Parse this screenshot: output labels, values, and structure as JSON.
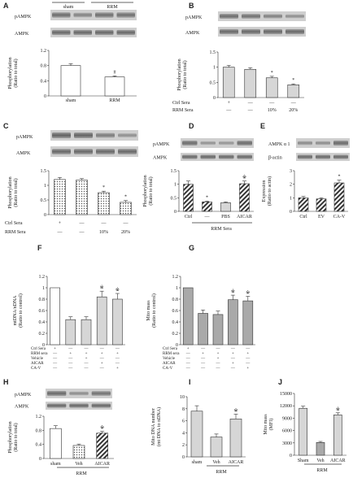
{
  "colors": {
    "bar_white": "#ffffff",
    "bar_light": "#d6d6d6",
    "bar_dark": "#a9a9a9",
    "stroke": "#333333",
    "blot": "#4a4a4a"
  },
  "panels": [
    {
      "id": "A",
      "letter": "A",
      "blot_labels": [
        "pAMPK",
        "AMPK"
      ],
      "group_labels": [
        "sham",
        "RRM"
      ],
      "chart_data": {
        "type": "bar",
        "categories": [
          "sham",
          "RRM"
        ],
        "values": [
          0.8,
          0.5
        ],
        "errors": [
          0.05,
          0.03
        ],
        "fills": [
          "white",
          "white"
        ],
        "ylabel": "Phosphorylation (Ratio to total)",
        "ylim": [
          0,
          1.2
        ],
        "yticks": [
          "0",
          "0.4",
          "0.8",
          "1.2"
        ],
        "yticks_v": [
          0,
          0.4,
          0.8,
          1.2
        ],
        "annotations": [
          {
            "index": 1,
            "text": "#"
          }
        ]
      }
    },
    {
      "id": "B",
      "letter": "B",
      "blot_labels": [
        "pAMPK",
        "AMPK"
      ],
      "chart_data": {
        "type": "bar",
        "categories": [
          "",
          "",
          "",
          ""
        ],
        "values": [
          1.0,
          0.93,
          0.65,
          0.42
        ],
        "errors": [
          0.06,
          0.05,
          0.05,
          0.03
        ],
        "fills": [
          "light",
          "light",
          "light",
          "light"
        ],
        "ylabel": "Phosphorylation (Ratio to total)",
        "ylim": [
          0,
          1.5
        ],
        "yticks": [
          "0",
          "0.5",
          "1",
          "1.5"
        ],
        "yticks_v": [
          0,
          0.5,
          1,
          1.5
        ],
        "annotations": [
          {
            "index": 2,
            "text": "*"
          },
          {
            "index": 3,
            "text": "*"
          }
        ]
      },
      "rows": [
        {
          "label": "Ctrl Sera",
          "cells": [
            "+",
            "—",
            "—",
            "—"
          ]
        },
        {
          "label": "RRM Sera",
          "cells": [
            "—",
            "—",
            "10%",
            "20%"
          ]
        }
      ]
    },
    {
      "id": "C",
      "letter": "C",
      "blot_labels": [
        "pAMPK",
        "AMPK"
      ],
      "chart_data": {
        "type": "bar",
        "categories": [
          "",
          "",
          "",
          ""
        ],
        "values": [
          1.2,
          1.18,
          0.75,
          0.42
        ],
        "errors": [
          0.07,
          0.05,
          0.05,
          0.06
        ],
        "fills": [
          "dots",
          "dots",
          "dots",
          "dots"
        ],
        "ylabel": "Phosphorylation (Ratio to total)",
        "ylim": [
          0,
          1.5
        ],
        "yticks": [
          "0",
          "0.5",
          "1",
          "1.5"
        ],
        "yticks_v": [
          0,
          0.5,
          1,
          1.5
        ],
        "annotations": [
          {
            "index": 2,
            "text": "*"
          },
          {
            "index": 3,
            "text": "*"
          }
        ]
      },
      "rows": [
        {
          "label": "Ctrl  Sera",
          "cells": [
            "+",
            "—",
            "—",
            "—"
          ]
        },
        {
          "label": "RRM Sera",
          "cells": [
            "—",
            "—",
            "10%",
            "20%"
          ]
        }
      ]
    },
    {
      "id": "D",
      "letter": "D",
      "blot_labels": [
        "pAMPK",
        "AMPK"
      ],
      "chart_data": {
        "type": "bar",
        "categories": [
          "Ctrl",
          "—",
          "PBS",
          "AICAR"
        ],
        "values": [
          1.0,
          0.35,
          0.32,
          1.02
        ],
        "errors": [
          0.12,
          0.03,
          0.03,
          0.1
        ],
        "fills": [
          "hatch",
          "hatch",
          "light",
          "hatch"
        ],
        "ylabel": "Phosphorylation (Ratio to total)",
        "ylim": [
          0,
          1.5
        ],
        "yticks": [
          "0",
          "0.5",
          "1",
          "1.5"
        ],
        "yticks_v": [
          0,
          0.5,
          1,
          1.5
        ],
        "annotations": [
          {
            "index": 1,
            "text": "*"
          },
          {
            "index": 3,
            "text": "※"
          }
        ]
      },
      "group_label": "RRM Sera"
    },
    {
      "id": "E",
      "letter": "E",
      "blot_labels": [
        "AMPK α 1",
        "β-actin"
      ],
      "chart_data": {
        "type": "bar",
        "categories": [
          "Ctrl",
          "EV",
          "CA-V"
        ],
        "values": [
          1.0,
          0.92,
          2.1
        ],
        "errors": [
          0.1,
          0.08,
          0.2
        ],
        "fills": [
          "hatch",
          "hatch",
          "hatch"
        ],
        "ylabel": "Expression (Ratio to actin)",
        "ylim": [
          0,
          3
        ],
        "yticks": [
          "0",
          "1",
          "2",
          "3"
        ],
        "yticks_v": [
          0,
          1,
          2,
          3
        ],
        "annotations": [
          {
            "index": 2,
            "text": "*"
          }
        ]
      }
    },
    {
      "id": "F",
      "letter": "F",
      "chart_data": {
        "type": "bar",
        "categories": [
          "",
          "",
          "",
          "",
          ""
        ],
        "values": [
          1.0,
          0.44,
          0.44,
          0.84,
          0.8
        ],
        "errors": [
          0,
          0.05,
          0.05,
          0.1,
          0.1
        ],
        "fills": [
          "white",
          "light",
          "light",
          "light",
          "light"
        ],
        "ylabel": "mtDNA/nDNA (Ratio to control)",
        "ylim": [
          0,
          1.2
        ],
        "yticks": [
          "0",
          "0.2",
          "0.4",
          "0.6",
          "0.8",
          "1",
          "1.2"
        ],
        "yticks_v": [
          0,
          0.2,
          0.4,
          0.6,
          0.8,
          1,
          1.2
        ],
        "annotations": [
          {
            "index": 3,
            "text": "※"
          },
          {
            "index": 4,
            "text": "※"
          }
        ]
      },
      "rows": [
        {
          "label": "Ctrl Sera",
          "cells": [
            "+",
            "—",
            "—",
            "—",
            "—"
          ]
        },
        {
          "label": "RRM sera",
          "cells": [
            "—",
            "+",
            "+",
            "+",
            "+"
          ]
        },
        {
          "label": "Vehicle",
          "cells": [
            "—",
            "—",
            "+",
            "—",
            "—"
          ]
        },
        {
          "label": "AICAR",
          "cells": [
            "—",
            "—",
            "—",
            "+",
            "—"
          ]
        },
        {
          "label": "CA-V",
          "cells": [
            "—",
            "—",
            "—",
            "—",
            "+"
          ]
        }
      ]
    },
    {
      "id": "G",
      "letter": "G",
      "chart_data": {
        "type": "bar",
        "categories": [
          "",
          "",
          "",
          "",
          ""
        ],
        "values": [
          1.0,
          0.55,
          0.53,
          0.79,
          0.77
        ],
        "errors": [
          0,
          0.06,
          0.06,
          0.08,
          0.08
        ],
        "fills": [
          "dark",
          "dark",
          "dark",
          "dark",
          "dark"
        ],
        "ylabel": "Mito mass (Ratio to control)",
        "ylim": [
          0,
          1.2
        ],
        "yticks": [
          "0",
          "0.2",
          "0.4",
          "0.6",
          "0.8",
          "1",
          "1.2"
        ],
        "yticks_v": [
          0,
          0.2,
          0.4,
          0.6,
          0.8,
          1,
          1.2
        ],
        "annotations": [
          {
            "index": 3,
            "text": "※"
          },
          {
            "index": 4,
            "text": "※"
          }
        ]
      },
      "rows": [
        {
          "label": "Ctrl Sera",
          "cells": [
            "+",
            "—",
            "—",
            "—",
            "—"
          ]
        },
        {
          "label": "RRM sera",
          "cells": [
            "—",
            "+",
            "+",
            "+",
            "+"
          ]
        },
        {
          "label": "Vehicle",
          "cells": [
            "—",
            "—",
            "+",
            "—",
            "—"
          ]
        },
        {
          "label": "AICAR",
          "cells": [
            "—",
            "—",
            "—",
            "+",
            "—"
          ]
        },
        {
          "label": "CA-V",
          "cells": [
            "—",
            "—",
            "—",
            "—",
            "+"
          ]
        }
      ]
    },
    {
      "id": "H",
      "letter": "H",
      "blot_labels": [
        "pAMPK",
        "AMPK"
      ],
      "chart_data": {
        "type": "bar",
        "categories": [
          "sham",
          "Veh",
          "AICAR"
        ],
        "values": [
          0.85,
          0.37,
          0.72
        ],
        "errors": [
          0.08,
          0.04,
          0.05
        ],
        "fills": [
          "white",
          "dots",
          "hatch"
        ],
        "ylabel": "Phosphorylation (Ratio to total)",
        "ylim": [
          0,
          1.2
        ],
        "yticks": [
          "0",
          "0.4",
          "0.8",
          "1.2"
        ],
        "yticks_v": [
          0,
          0.4,
          0.8,
          1.2
        ],
        "annotations": [
          {
            "index": 2,
            "text": "※"
          }
        ]
      },
      "group_label": "RRM"
    },
    {
      "id": "I",
      "letter": "I",
      "chart_data": {
        "type": "bar",
        "categories": [
          "sham",
          "Veh",
          "AICAR"
        ],
        "values": [
          7.6,
          3.3,
          6.3
        ],
        "errors": [
          0.9,
          0.5,
          0.8
        ],
        "fills": [
          "light",
          "light",
          "light"
        ],
        "ylabel": "Mito DNA number (mt DNA to nDNA)",
        "ylim": [
          0,
          10
        ],
        "yticks": [
          "0",
          "2",
          "4",
          "6",
          "8",
          "10"
        ],
        "yticks_v": [
          0,
          2,
          4,
          6,
          8,
          10
        ],
        "annotations": [
          {
            "index": 2,
            "text": "※"
          }
        ]
      },
      "group_label": "RRM"
    },
    {
      "id": "J",
      "letter": "J",
      "chart_data": {
        "type": "bar",
        "categories": [
          "Sham",
          "Veh",
          "AICAR"
        ],
        "values": [
          11400,
          3100,
          9800
        ],
        "errors": [
          500,
          250,
          500
        ],
        "fills": [
          "light",
          "dark",
          "light"
        ],
        "ylabel": "Mito mass (MFI)",
        "ylim": [
          0,
          15000
        ],
        "yticks": [
          "0",
          "3000",
          "6000",
          "9000",
          "12000",
          "15000"
        ],
        "yticks_v": [
          0,
          3000,
          6000,
          9000,
          12000,
          15000
        ],
        "annotations": [
          {
            "index": 2,
            "text": "※"
          }
        ]
      },
      "group_label": "RRM"
    }
  ]
}
